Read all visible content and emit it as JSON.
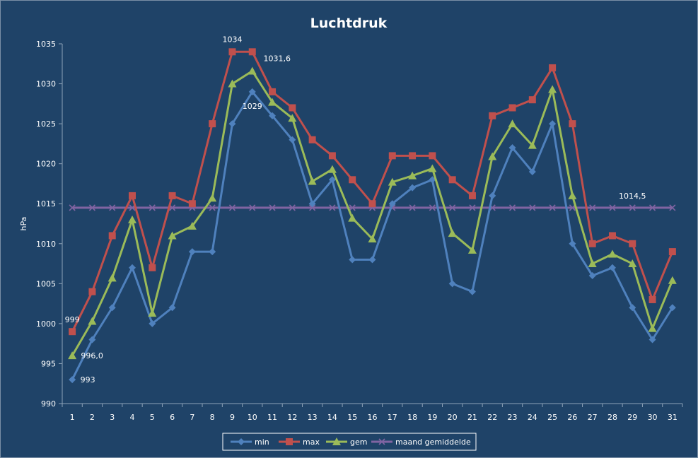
{
  "chart_data": {
    "type": "line",
    "title": "Luchtdruk",
    "ylabel": "hPa",
    "xlabel": "",
    "ylim": [
      990,
      1035
    ],
    "ytick_step": 5,
    "grid": false,
    "legend_position": "bottom",
    "categories": [
      "1",
      "2",
      "3",
      "4",
      "5",
      "6",
      "7",
      "8",
      "9",
      "10",
      "11",
      "12",
      "13",
      "14",
      "15",
      "16",
      "17",
      "18",
      "19",
      "20",
      "21",
      "22",
      "23",
      "24",
      "25",
      "26",
      "27",
      "28",
      "29",
      "30",
      "31"
    ],
    "series": [
      {
        "name": "min",
        "marker": "diamond",
        "color": "#4f81bd",
        "values": [
          993,
          998,
          1002,
          1007,
          1000,
          1002,
          1009,
          1009,
          1025,
          1029,
          1026,
          1023,
          1015,
          1018,
          1008,
          1008,
          1015,
          1017,
          1018,
          1005,
          1004,
          1016,
          1022,
          1019,
          1025,
          1010,
          1006,
          1007,
          1002,
          998,
          1002
        ]
      },
      {
        "name": "max",
        "marker": "square",
        "color": "#c0504d",
        "values": [
          999,
          1004,
          1011,
          1016,
          1007,
          1016,
          1015,
          1025,
          1034,
          1034,
          1029,
          1027,
          1023,
          1021,
          1018,
          1015,
          1021,
          1021,
          1021,
          1018,
          1016,
          1026,
          1027,
          1028,
          1032,
          1025,
          1010,
          1011,
          1010,
          1003,
          1009
        ]
      },
      {
        "name": "gem",
        "marker": "triangle",
        "color": "#9bbb59",
        "values": [
          996.0,
          1000.3,
          1005.7,
          1013.0,
          1001.3,
          1011.0,
          1012.2,
          1015.7,
          1030.0,
          1031.6,
          1027.7,
          1025.7,
          1017.8,
          1019.3,
          1013.2,
          1010.6,
          1017.7,
          1018.5,
          1019.4,
          1011.3,
          1009.2,
          1020.9,
          1025.0,
          1022.3,
          1029.3,
          1016.0,
          1007.5,
          1008.7,
          1007.5,
          999.4,
          1005.4
        ]
      },
      {
        "name": "maand gemiddelde",
        "marker": "x",
        "color": "#8064a2",
        "values": [
          1014.5,
          1014.5,
          1014.5,
          1014.5,
          1014.5,
          1014.5,
          1014.5,
          1014.5,
          1014.5,
          1014.5,
          1014.5,
          1014.5,
          1014.5,
          1014.5,
          1014.5,
          1014.5,
          1014.5,
          1014.5,
          1014.5,
          1014.5,
          1014.5,
          1014.5,
          1014.5,
          1014.5,
          1014.5,
          1014.5,
          1014.5,
          1014.5,
          1014.5,
          1014.5,
          1014.5
        ]
      }
    ],
    "annotations": [
      {
        "series": "max",
        "index": 0,
        "text": "999"
      },
      {
        "series": "gem",
        "index": 0,
        "text": "996,0"
      },
      {
        "series": "min",
        "index": 0,
        "text": "993"
      },
      {
        "series": "max",
        "index": 8,
        "text": "1034"
      },
      {
        "series": "gem",
        "index": 9,
        "text": "1031,6"
      },
      {
        "series": "min",
        "index": 9,
        "text": "1029"
      },
      {
        "series": "maand gemiddelde",
        "index": 28,
        "text": "1014,5"
      }
    ]
  }
}
